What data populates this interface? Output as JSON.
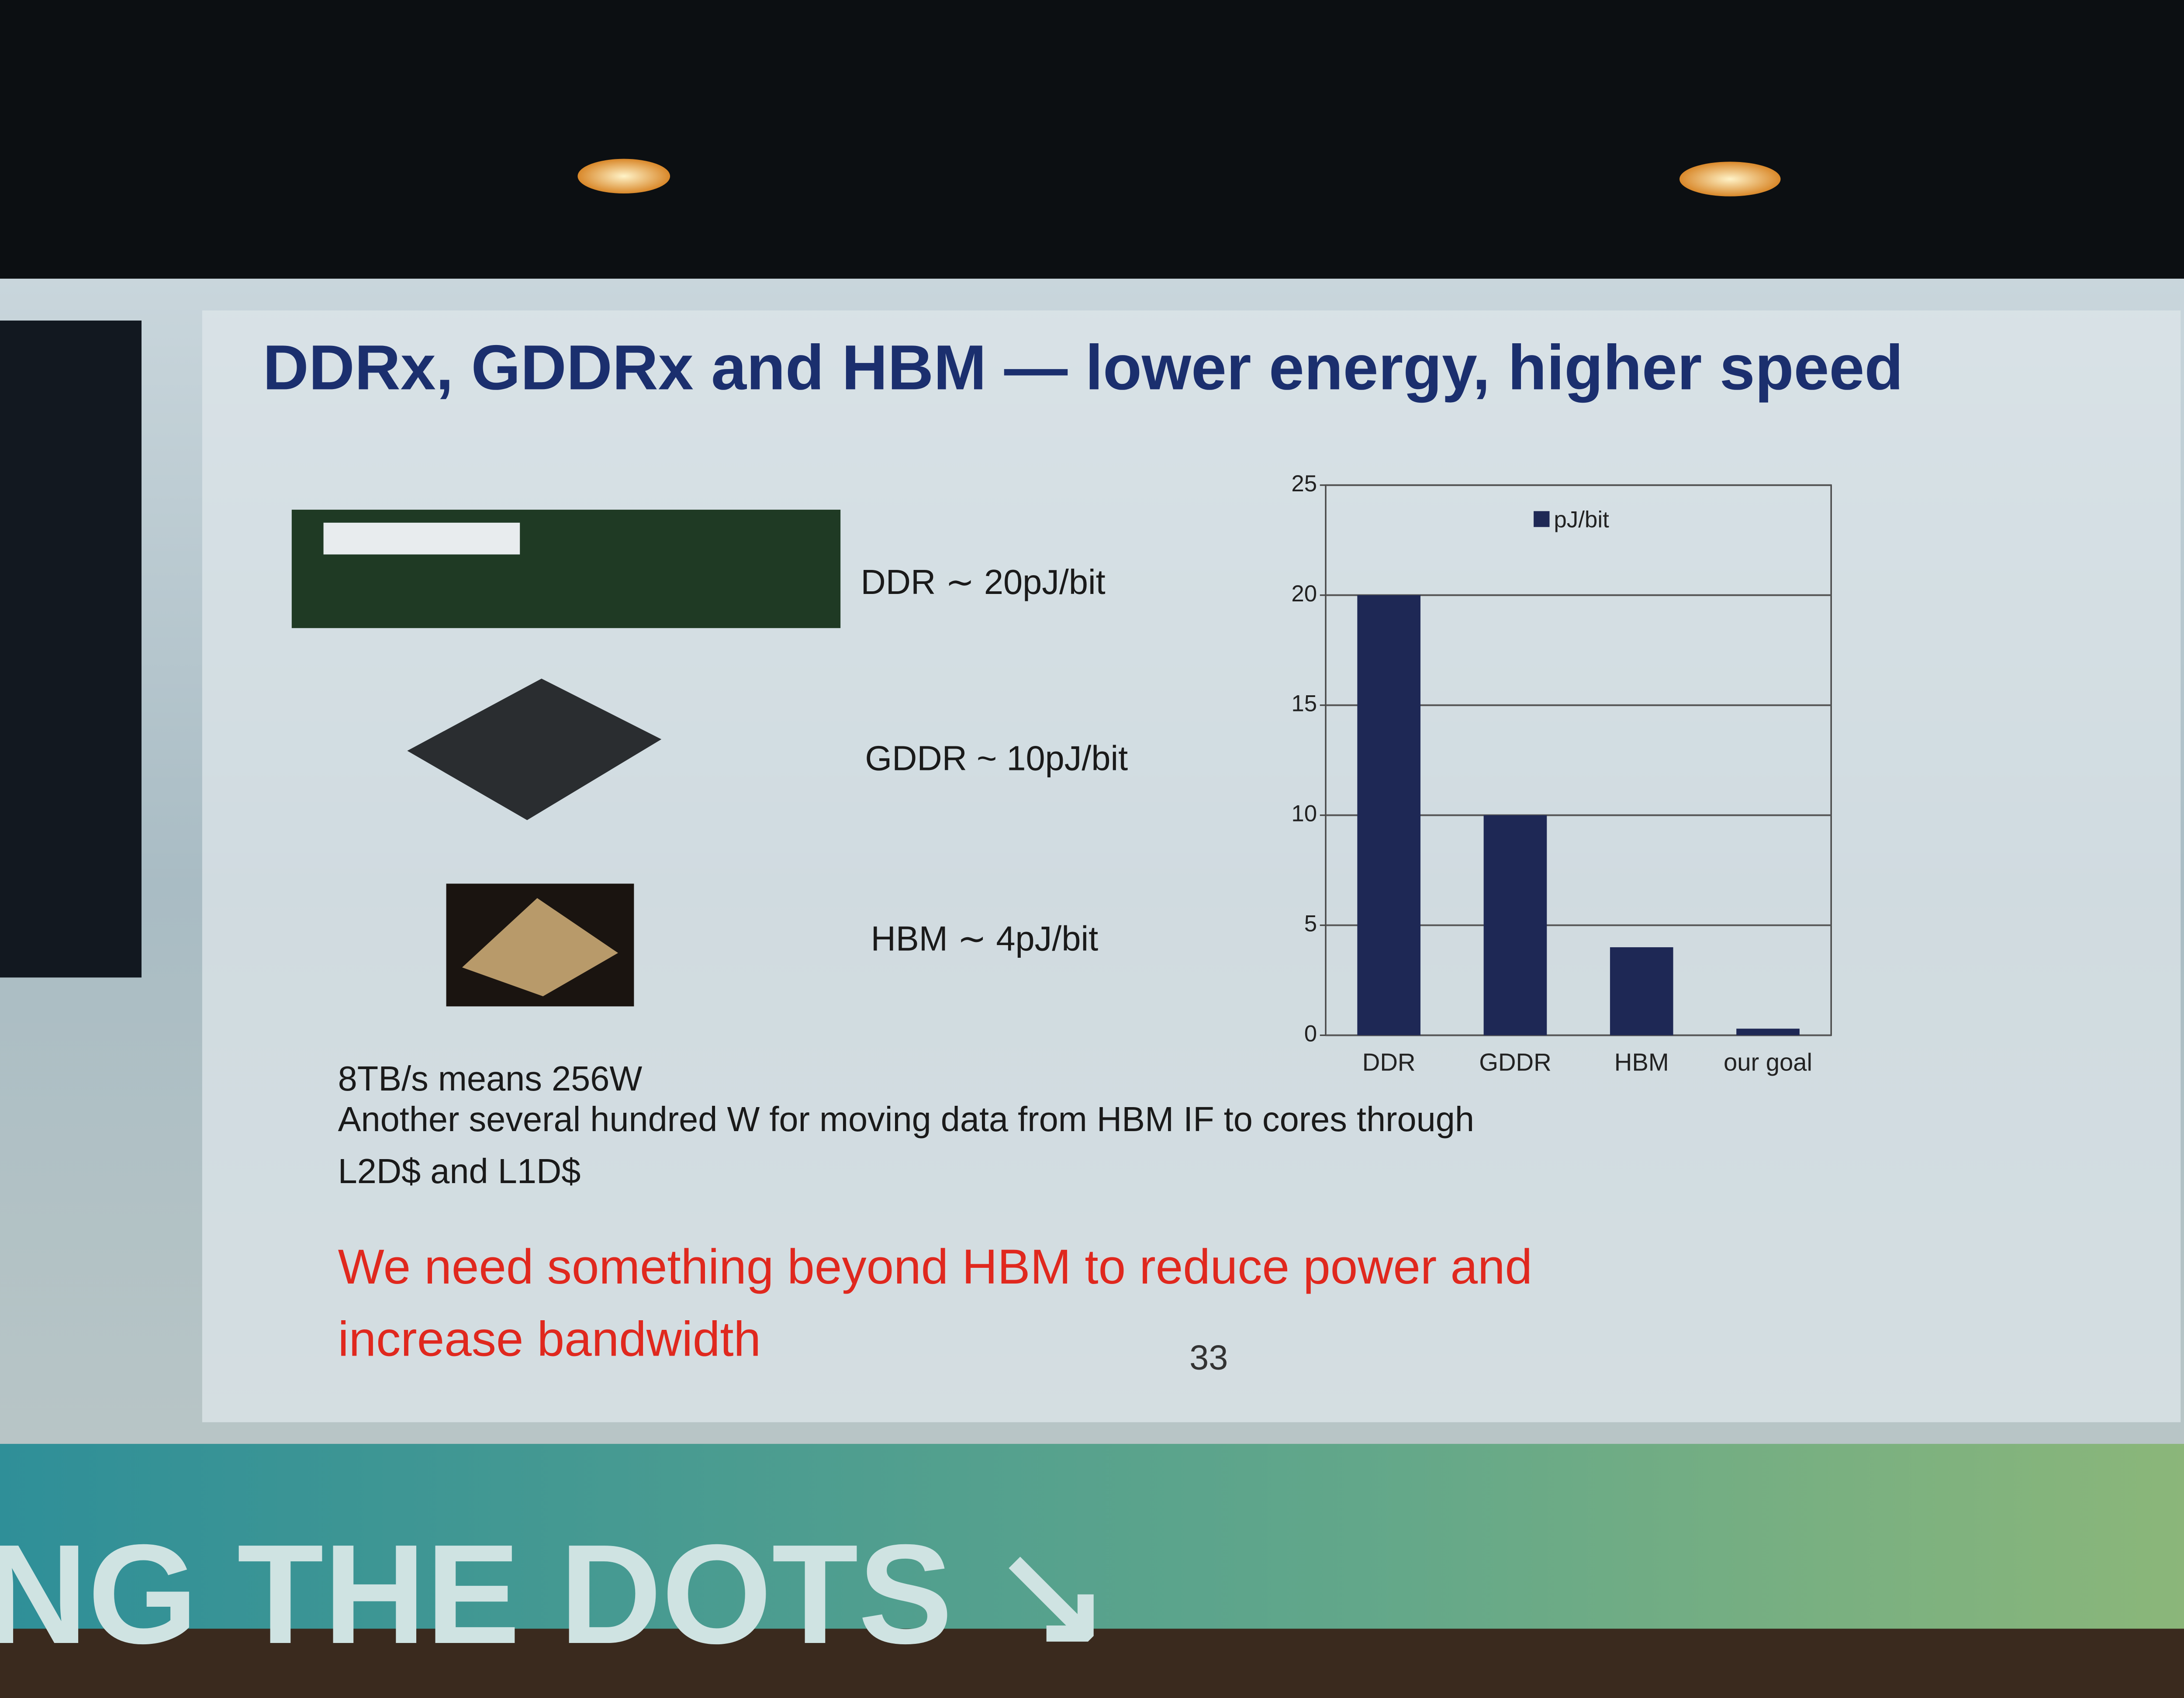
{
  "slide": {
    "title": "DDRx, GDDRx and HBM — lower energy, higher speed",
    "items": [
      "DDR ∼ 20pJ/bit",
      "GDDR ~ 10pJ/bit",
      "HBM ∼ 4pJ/bit"
    ],
    "notes": [
      "8TB/s means 256W",
      "Another several hundred W for moving data from HBM IF to cores through",
      "L2D$ and L1D$"
    ],
    "conclusion": [
      "We need something beyond HBM to reduce power and",
      "increase bandwidth"
    ],
    "page_number": "33",
    "banner": "NG THE DOTS ↘"
  },
  "chart_data": {
    "type": "bar",
    "categories": [
      "DDR",
      "GDDR",
      "HBM",
      "our goal"
    ],
    "series": [
      {
        "name": "pJ/bit",
        "color": "#1e2855",
        "values": [
          20,
          10,
          4,
          0.3
        ]
      }
    ],
    "ylim": [
      0,
      25
    ],
    "yticks": [
      0,
      5,
      10,
      15,
      20,
      25
    ],
    "grid": true,
    "legend": "top"
  }
}
